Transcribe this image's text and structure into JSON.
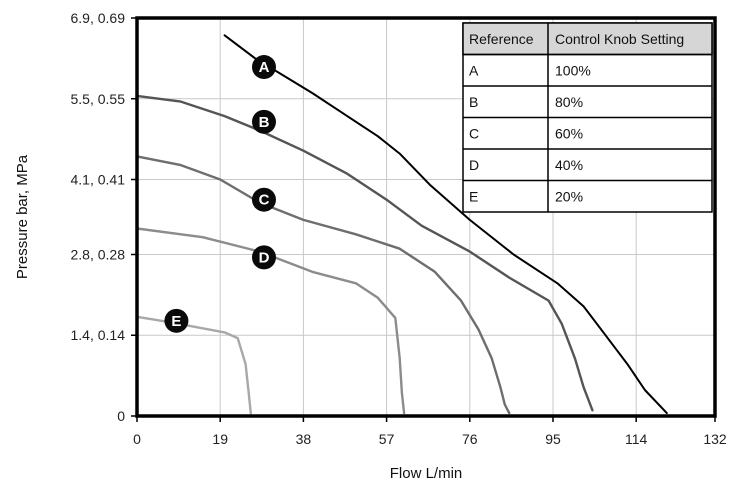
{
  "chart_data": {
    "type": "line",
    "xlabel": "Flow L/min",
    "ylabel": "Pressure bar, MPa",
    "xlim": [
      0,
      132
    ],
    "ylim": [
      0,
      6.9
    ],
    "x_ticks": [
      0,
      19,
      38,
      57,
      76,
      95,
      114,
      132
    ],
    "y_ticks": [
      {
        "value": 0,
        "label": "0"
      },
      {
        "value": 1.4,
        "label": "1.4, 0.14"
      },
      {
        "value": 2.8,
        "label": "2.8, 0.28"
      },
      {
        "value": 4.1,
        "label": "4.1, 0.41"
      },
      {
        "value": 5.5,
        "label": "5.5, 0.55"
      },
      {
        "value": 6.9,
        "label": "6.9, 0.69"
      }
    ],
    "grid": true,
    "series": [
      {
        "name": "A",
        "color": "#000000",
        "x": [
          20,
          27,
          40,
          48,
          55,
          60,
          67,
          76,
          86,
          96,
          102,
          107,
          112,
          116,
          121
        ],
        "y": [
          6.6,
          6.2,
          5.6,
          5.2,
          4.85,
          4.55,
          4.0,
          3.4,
          2.8,
          2.3,
          1.9,
          1.4,
          0.9,
          0.45,
          0.05
        ],
        "label_at": [
          29,
          6.05
        ]
      },
      {
        "name": "B",
        "color": "#555555",
        "x": [
          0,
          10,
          20,
          28,
          38,
          48,
          57,
          65,
          76,
          85,
          94,
          97,
          100,
          102,
          104
        ],
        "y": [
          5.55,
          5.45,
          5.2,
          4.95,
          4.6,
          4.2,
          3.75,
          3.3,
          2.85,
          2.4,
          2.0,
          1.6,
          1.0,
          0.5,
          0.1
        ],
        "label_at": [
          29,
          5.1
        ]
      },
      {
        "name": "C",
        "color": "#6e6e6e",
        "x": [
          0,
          10,
          19,
          28,
          38,
          50,
          60,
          68,
          74,
          78,
          81,
          83,
          84,
          85
        ],
        "y": [
          4.5,
          4.35,
          4.1,
          3.7,
          3.4,
          3.15,
          2.9,
          2.5,
          2.0,
          1.5,
          1.0,
          0.5,
          0.2,
          0.05
        ],
        "label_at": [
          29,
          3.75
        ]
      },
      {
        "name": "D",
        "color": "#8c8c8c",
        "x": [
          0,
          15,
          28,
          40,
          50,
          55,
          59,
          60,
          60.5,
          61
        ],
        "y": [
          3.25,
          3.1,
          2.85,
          2.5,
          2.3,
          2.05,
          1.7,
          1.0,
          0.4,
          0.05
        ],
        "label_at": [
          29,
          2.75
        ]
      },
      {
        "name": "E",
        "color": "#a8a8a8",
        "x": [
          0,
          8,
          15,
          20,
          23,
          24.8,
          25.5,
          26
        ],
        "y": [
          1.72,
          1.62,
          1.52,
          1.45,
          1.35,
          0.9,
          0.4,
          0.05
        ],
        "label_at": [
          9,
          1.65
        ]
      }
    ],
    "legend_table": {
      "headers": [
        "Reference",
        "Control Knob Setting"
      ],
      "rows": [
        [
          "A",
          "100%"
        ],
        [
          "B",
          "80%"
        ],
        [
          "C",
          "60%"
        ],
        [
          "D",
          "40%"
        ],
        [
          "E",
          "20%"
        ]
      ],
      "placement": "top-right"
    }
  }
}
